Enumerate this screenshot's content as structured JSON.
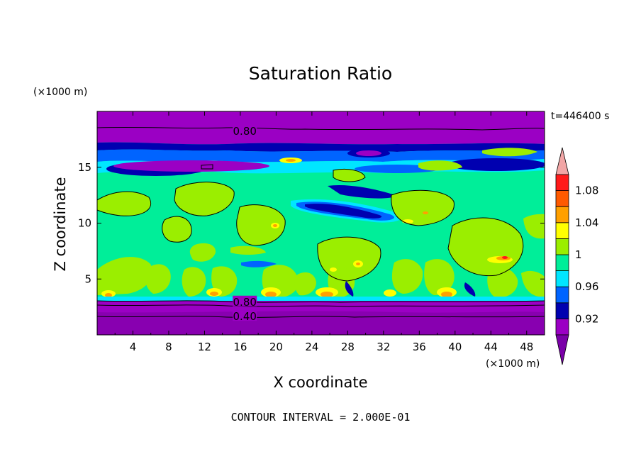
{
  "chart_data": {
    "type": "contour",
    "title": "Saturation Ratio",
    "xlabel": "X coordinate",
    "ylabel": "Z coordinate",
    "x_units": "(×1000 m)",
    "z_units": "(×1000 m)",
    "time_label": "t=446400 s",
    "footer": "CONTOUR INTERVAL = 2.000E-01",
    "xlim": [
      0,
      50
    ],
    "ylim": [
      0,
      20
    ],
    "x_ticks": [
      4,
      8,
      12,
      16,
      20,
      24,
      28,
      32,
      36,
      40,
      44,
      48
    ],
    "y_ticks": [
      5,
      10,
      15
    ],
    "colorbar": {
      "boundaries": [
        0.9,
        0.92,
        0.94,
        0.96,
        0.98,
        1.0,
        1.02,
        1.04,
        1.06,
        1.08,
        1.1
      ],
      "labels": [
        "0.92",
        "0.96",
        "1",
        "1.04",
        "1.08"
      ],
      "label_values": [
        0.92,
        0.96,
        1.0,
        1.04,
        1.08
      ],
      "colors": [
        "#9b00c4",
        "#0000b0",
        "#0064ff",
        "#00e6ff",
        "#00ee99",
        "#9bee00",
        "#ffff00",
        "#ffa000",
        "#ff5a00",
        "#ff1a1a"
      ],
      "under_color": "#7a00a8",
      "over_color": "#f2a6a6"
    },
    "contour_labels": [
      {
        "value": "0.80",
        "x": 16.5,
        "z": 18.3
      },
      {
        "value": "0.80",
        "x": 16.5,
        "z": 3.0
      },
      {
        "value": "0.40",
        "x": 16.5,
        "z": 1.7
      }
    ],
    "layers": [
      {
        "level": "~0.80",
        "z_range": [
          0,
          3.2
        ],
        "description_color": "#9b00c4"
      },
      {
        "level": "0.96-1.00",
        "z_range": [
          3.2,
          17
        ],
        "description_color": "#00ee99"
      },
      {
        "level": "~0.80",
        "z_range": [
          17.5,
          20
        ],
        "description_color": "#9b00c4"
      }
    ]
  }
}
